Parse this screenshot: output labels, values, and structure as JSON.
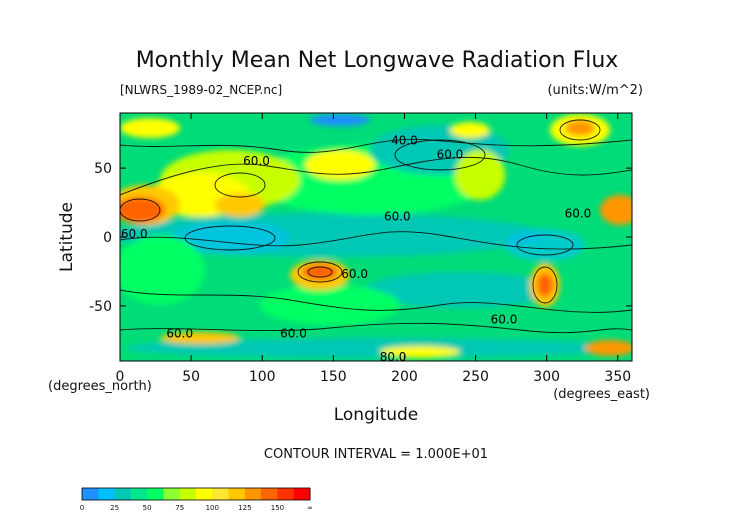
{
  "chart_data": {
    "type": "heatmap",
    "title": "Monthly Mean Net Longwave Radiation Flux",
    "file_label": "[NLWRS_1989-02_NCEP.nc]",
    "units_label": "(units:W/m^2)",
    "xlabel": "Longitude",
    "xlabel_units": "(degrees_east)",
    "ylabel": "Latitude",
    "ylabel_units": "(degrees_north)",
    "xlim": [
      0,
      360
    ],
    "ylim": [
      -90,
      90
    ],
    "x_ticks": [
      0,
      50,
      100,
      150,
      200,
      250,
      300,
      350
    ],
    "y_ticks": [
      50,
      0,
      -50
    ],
    "contour_interval_text": "CONTOUR INTERVAL = 1.000E+01",
    "contour_labels": [
      {
        "text": "40.0",
        "x": 200,
        "y": 70
      },
      {
        "text": "60.0",
        "x": 232,
        "y": 60
      },
      {
        "text": "60.0",
        "x": 96,
        "y": 55
      },
      {
        "text": "60.0",
        "x": 195,
        "y": 15
      },
      {
        "text": "60.0",
        "x": 322,
        "y": 17
      },
      {
        "text": "60.0",
        "x": 10,
        "y": 2
      },
      {
        "text": "60.0",
        "x": 165,
        "y": -27
      },
      {
        "text": "60.0",
        "x": 270,
        "y": -60
      },
      {
        "text": "60.0",
        "x": 42,
        "y": -70
      },
      {
        "text": "60.0",
        "x": 122,
        "y": -70
      },
      {
        "text": "80.0",
        "x": 192,
        "y": -87
      }
    ],
    "colorbar": {
      "tick_labels": [
        "0",
        "25",
        "50",
        "75",
        "100",
        "125",
        "150",
        "∞"
      ],
      "colors": [
        "#1e90ff",
        "#00bfff",
        "#00c8b4",
        "#00e68c",
        "#00ff64",
        "#8cff32",
        "#c8ff00",
        "#ffff00",
        "#ffe632",
        "#ffc800",
        "#ff9600",
        "#ff6400",
        "#ff3200",
        "#ff0000"
      ]
    }
  }
}
